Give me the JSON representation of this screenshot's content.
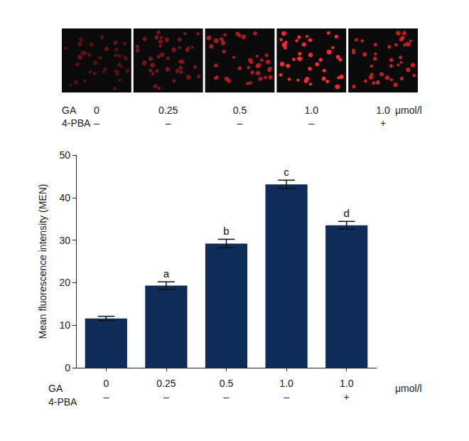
{
  "chart_data": {
    "type": "bar",
    "ylabel": "Mean fluorescence intensity (MEN)",
    "categories_label": "GA",
    "categories": [
      "0",
      "0.25",
      "0.5",
      "1.0",
      "1.0"
    ],
    "subcategories_label": "4-PBA",
    "subcategories": [
      "–",
      "–",
      "–",
      "–",
      "+"
    ],
    "unit": "μmol/l",
    "values": [
      11.6,
      19.3,
      29.2,
      43.1,
      33.5
    ],
    "errors": [
      0.5,
      0.9,
      1.0,
      1.0,
      0.9
    ],
    "significance": [
      null,
      "a",
      "b",
      "c",
      "d"
    ],
    "color": "#0f2b57",
    "ylim": [
      0,
      50
    ],
    "yticks": [
      0,
      10,
      20,
      30,
      40,
      50
    ],
    "grid": false
  }
}
